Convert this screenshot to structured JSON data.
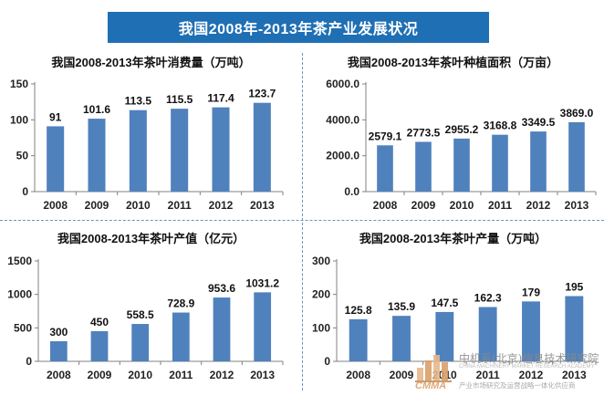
{
  "page": {
    "banner_title": "我国2008年-2013年茶产业发展状况"
  },
  "chart_data": [
    {
      "type": "bar",
      "title": "我国2008-2013年茶叶消费量（万吨）",
      "categories": [
        "2008",
        "2009",
        "2010",
        "2011",
        "2012",
        "2013"
      ],
      "values": [
        91,
        101.6,
        113.5,
        115.5,
        117.4,
        123.7
      ],
      "value_labels": [
        "91",
        "101.6",
        "113.5",
        "115.5",
        "117.4",
        "123.7"
      ],
      "ylim": [
        0,
        150
      ],
      "yticks": [
        0,
        50,
        100,
        150
      ],
      "ytick_labels": [
        "0",
        "50",
        "100",
        "150"
      ],
      "xlabel": "",
      "ylabel": "",
      "bar_color": "#4f81bd",
      "grid": false
    },
    {
      "type": "bar",
      "title": "我国2008-2013年茶叶种植面积（万亩）",
      "categories": [
        "2008",
        "2009",
        "2010",
        "2011",
        "2012",
        "2013"
      ],
      "values": [
        2579.1,
        2773.5,
        2955.2,
        3168.8,
        3349.5,
        3869.0
      ],
      "value_labels": [
        "2579.1",
        "2773.5",
        "2955.2",
        "3168.8",
        "3349.5",
        "3869.0"
      ],
      "ylim": [
        0,
        6000
      ],
      "yticks": [
        0,
        2000,
        4000,
        6000
      ],
      "ytick_labels": [
        "0.0",
        "2000.0",
        "4000.0",
        "6000.0"
      ],
      "xlabel": "",
      "ylabel": "",
      "bar_color": "#4f81bd",
      "grid": false
    },
    {
      "type": "bar",
      "title": "我国2008-2013年茶叶产值（亿元）",
      "categories": [
        "2008",
        "2009",
        "2010",
        "2011",
        "2012",
        "2013"
      ],
      "values": [
        300,
        450,
        558.5,
        728.9,
        953.6,
        1031.2
      ],
      "value_labels": [
        "300",
        "450",
        "558.5",
        "728.9",
        "953.6",
        "1031.2"
      ],
      "ylim": [
        0,
        1500
      ],
      "yticks": [
        0,
        500,
        1000,
        1500
      ],
      "ytick_labels": [
        "0",
        "500",
        "1000",
        "1500"
      ],
      "xlabel": "",
      "ylabel": "",
      "bar_color": "#4f81bd",
      "grid": false
    },
    {
      "type": "bar",
      "title": "我国2008-2013年茶叶产量（万吨）",
      "categories": [
        "2008",
        "2009",
        "2010",
        "2011",
        "2012",
        "2013"
      ],
      "values": [
        125.8,
        135.9,
        147.5,
        162.3,
        179,
        195
      ],
      "value_labels": [
        "125.8",
        "135.9",
        "147.5",
        "162.3",
        "179",
        "195"
      ],
      "ylim": [
        0,
        300
      ],
      "yticks": [
        0,
        100,
        200,
        300
      ],
      "ytick_labels": [
        "0",
        "100",
        "200",
        "300"
      ],
      "xlabel": "",
      "ylabel": "",
      "bar_color": "#4f81bd",
      "grid": false
    }
  ],
  "watermark": {
    "abbr": "CMMA",
    "name": "中机系(北京)信息技术研究院",
    "english": "CHINA MACHINERY MARKET RESEARCH ACADEMY",
    "slogan": "产业市场研究及运营战略一体化供应商",
    "icon": "building-bars-logo-icon",
    "color": "#d9a06a"
  }
}
